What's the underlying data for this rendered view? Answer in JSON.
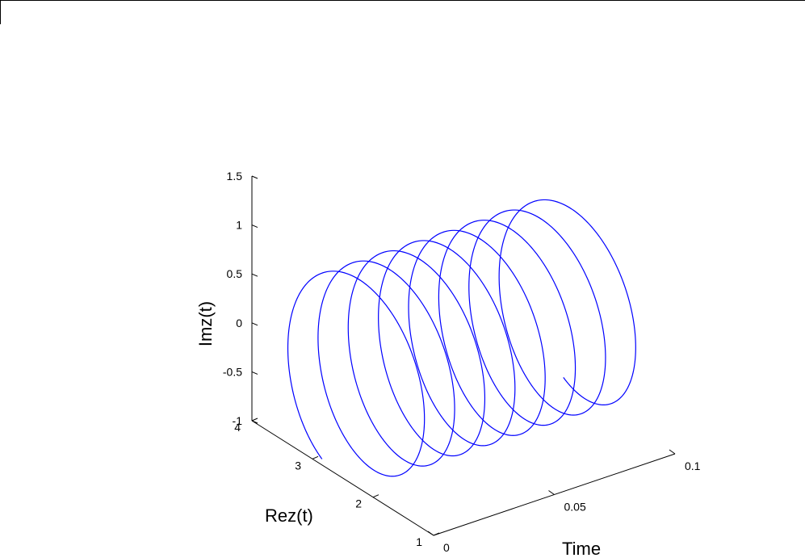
{
  "chart_data": {
    "type": "line",
    "projection": "3d",
    "title": "",
    "xlabel": "Time",
    "ylabel": "Rez(t)",
    "zlabel": "Imz(t)",
    "xlim": [
      0,
      0.1
    ],
    "ylim": [
      1,
      4
    ],
    "zlim": [
      -1,
      1.5
    ],
    "x_ticks": [
      "0",
      "0.05",
      "0.1"
    ],
    "y_ticks": [
      "1",
      "2",
      "3",
      "4"
    ],
    "z_ticks": [
      "-1",
      "-0.5",
      "0",
      "0.5",
      "1",
      "1.5"
    ],
    "grid": false,
    "series": [
      {
        "color": "#0000ff",
        "description_of_curve": "helix z(t)=2.5+e^{i*2*pi*80*t} around Re=2.5, Im=0, over t in [0, 0.1] (about 8 turns)",
        "t_start": 0,
        "t_end": 0.1,
        "re_center": 2.5,
        "im_center": 0,
        "radius": 1,
        "turns": 8
      }
    ]
  }
}
